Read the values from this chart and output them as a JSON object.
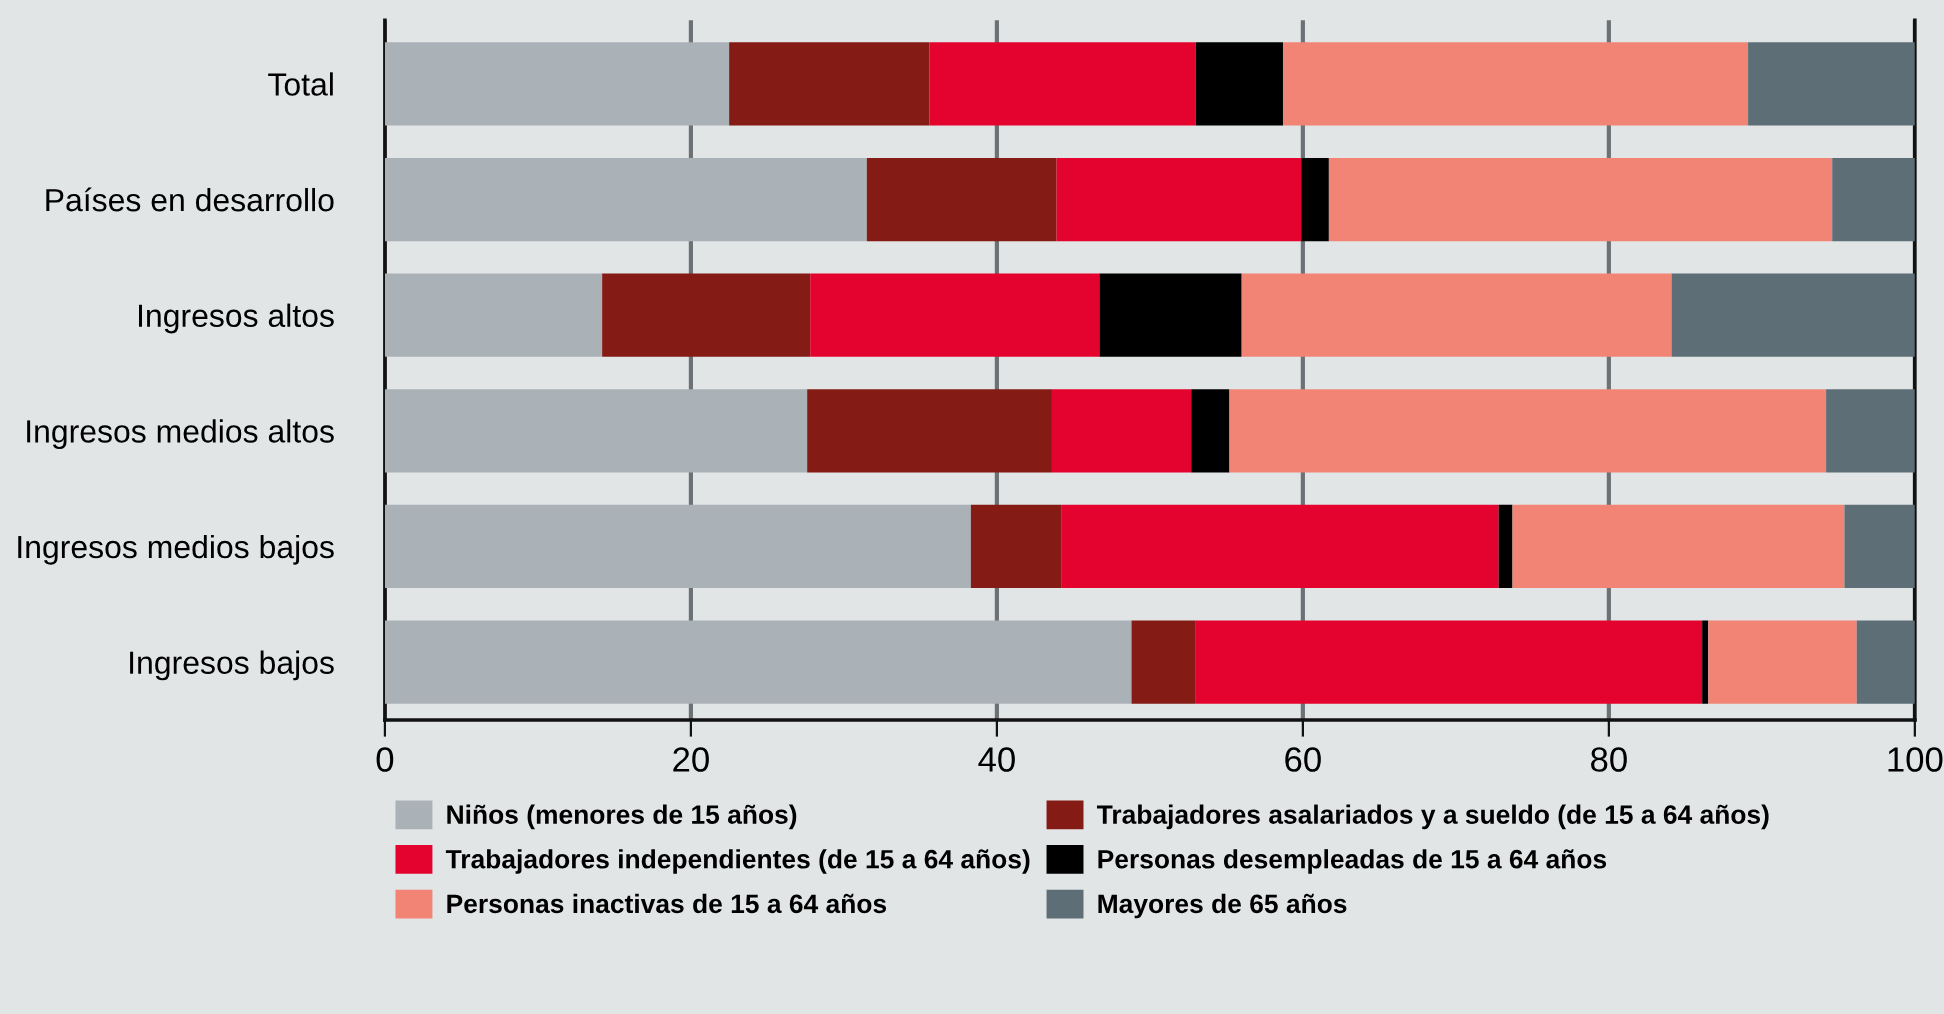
{
  "chart_data": {
    "type": "bar",
    "orientation": "horizontal",
    "stacked": true,
    "categories": [
      "Total",
      "Países en desarrollo",
      "Ingresos altos",
      "Ingresos medios altos",
      "Ingresos medios bajos",
      "Ingresos bajos"
    ],
    "series": [
      {
        "name": "Niños (menores de 15 años)",
        "color": "#aab1b7",
        "values": [
          22.5,
          31.5,
          14.2,
          27.6,
          38.3,
          48.8
        ]
      },
      {
        "name": "Trabajadores asalariados y a sueldo (de 15 a 64 años)",
        "color": "#841b14",
        "values": [
          13.1,
          12.4,
          13.6,
          16.0,
          5.9,
          4.2
        ]
      },
      {
        "name": "Trabajadores independientes (de 15 a 64 años)",
        "color": "#e4032e",
        "values": [
          17.4,
          16.0,
          18.9,
          9.1,
          28.6,
          33.1
        ]
      },
      {
        "name": "Personas desempleadas de 15 a 64 años",
        "color": "#000000",
        "values": [
          5.7,
          1.8,
          9.3,
          2.5,
          0.9,
          0.4
        ]
      },
      {
        "name": "Personas inactivas de 15 a 64 años",
        "color": "#f18475",
        "values": [
          30.4,
          32.9,
          28.1,
          39.0,
          21.7,
          9.7
        ]
      },
      {
        "name": "Mayores de 65 años",
        "color": "#5e6e76",
        "values": [
          10.9,
          5.4,
          15.9,
          5.8,
          4.6,
          3.8
        ]
      }
    ],
    "xlim": [
      0,
      100
    ],
    "xticks": [
      0,
      20,
      40,
      60,
      80,
      100
    ],
    "grid": "x",
    "legend": "bottom"
  }
}
